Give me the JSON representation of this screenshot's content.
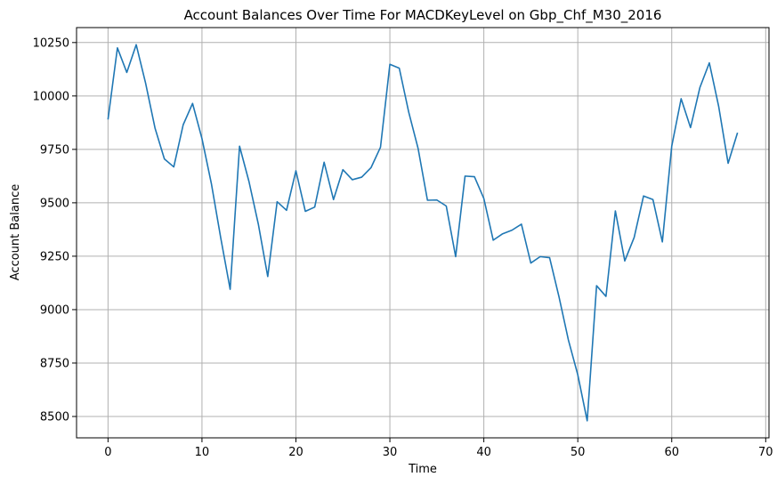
{
  "chart_data": {
    "type": "line",
    "title": "Account Balances Over Time For MACDKeyLevel on Gbp_Chf_M30_2016",
    "xlabel": "Time",
    "ylabel": "Account Balance",
    "xlim": [
      -3.35,
      70.35
    ],
    "ylim": [
      8400,
      10320
    ],
    "xticks": [
      "0",
      "10",
      "20",
      "30",
      "40",
      "50",
      "60",
      "70"
    ],
    "yticks": [
      "8500",
      "8750",
      "9000",
      "9250",
      "9500",
      "9750",
      "10000",
      "10250"
    ],
    "grid": true,
    "line_color": "#1f77b4",
    "series": [
      {
        "x": [
          0,
          1,
          2,
          3,
          4,
          5,
          6,
          7,
          8,
          9,
          10,
          11,
          12,
          13,
          14,
          15,
          16,
          17,
          18,
          19,
          20,
          21,
          22,
          23,
          24,
          25,
          26,
          27,
          28,
          29,
          30,
          31,
          32,
          33,
          34,
          35,
          36,
          37,
          38,
          39,
          40,
          41,
          42,
          43,
          44,
          45,
          46,
          47,
          48,
          49,
          50,
          51,
          52,
          53,
          54,
          55,
          56,
          57,
          58,
          59,
          60,
          61,
          62,
          63,
          64,
          65,
          66,
          67
        ],
        "values": [
          9890,
          10225,
          10110,
          10240,
          10060,
          9850,
          9705,
          9668,
          9865,
          9965,
          9800,
          9590,
          9335,
          9095,
          9765,
          9600,
          9400,
          9155,
          9505,
          9465,
          9650,
          9460,
          9480,
          9690,
          9515,
          9655,
          9608,
          9620,
          9665,
          9760,
          10148,
          10130,
          9925,
          9755,
          9512,
          9513,
          9485,
          9248,
          9625,
          9622,
          9520,
          9325,
          9355,
          9372,
          9400,
          9218,
          9248,
          9243,
          9060,
          8858,
          8695,
          8480,
          9112,
          9062,
          9462,
          9228,
          9338,
          9532,
          9515,
          9317,
          9765,
          9987,
          9852,
          10040,
          10155,
          9950,
          9685,
          9828
        ]
      }
    ]
  }
}
